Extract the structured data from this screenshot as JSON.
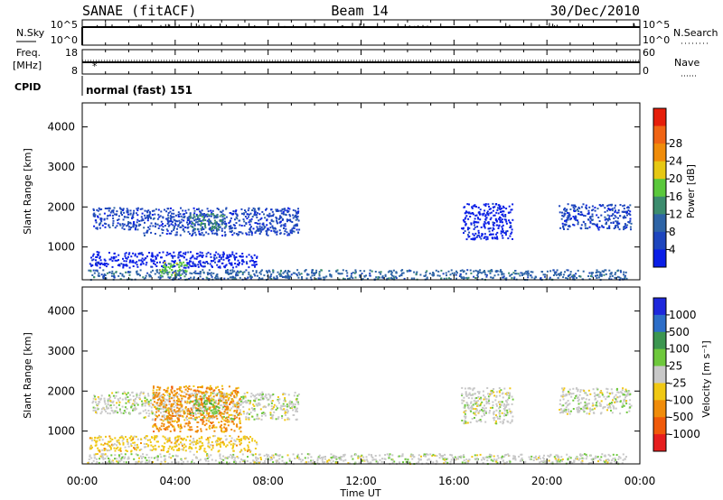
{
  "header": {
    "station": "SANAE (fitACF)",
    "beam": "Beam 14",
    "date": "30/Dec/2010"
  },
  "strip_panels": {
    "nsky_label": "N.Sky",
    "nsky_ticks": [
      "10^5",
      "10^0"
    ],
    "nsearch_label": "N.Search",
    "nsearch_ticks": [
      "10^5",
      "10^0"
    ],
    "freq_label_1": "Freq.",
    "freq_label_2": "[MHz]",
    "freq_ticks": [
      "18",
      "8"
    ],
    "nave_label": "Nave",
    "nave_ticks": [
      "60",
      "0"
    ],
    "cpid_label": "CPID",
    "cpid_value": "normal (fast) 151"
  },
  "x_axis": {
    "ticks": [
      "00:00",
      "04:00",
      "08:00",
      "12:00",
      "16:00",
      "20:00",
      "00:00"
    ],
    "label": "Time UT"
  },
  "colors": {
    "power": [
      "#0a1ee6",
      "#1e46be",
      "#2e64a6",
      "#3c8c6e",
      "#5ac83c",
      "#e6c814",
      "#f08c0a",
      "#f06414",
      "#e61e0a"
    ],
    "velocity": [
      "#1e28dc",
      "#2d6ec8",
      "#3c9650",
      "#6ec83c",
      "#c8c8c8",
      "#f0c814",
      "#f08c0a",
      "#f05a0a",
      "#e61e1e"
    ]
  },
  "chart_data": [
    {
      "type": "heatmap",
      "panel": "power",
      "ylabel": "Slant Range [km]",
      "yticks": [
        "1000",
        "2000",
        "3000",
        "4000"
      ],
      "ylim": [
        180,
        4600
      ],
      "xlim_hours": [
        0,
        24
      ],
      "colorbar_label": "Power [dB]",
      "colorbar_ticks": [
        "4",
        "8",
        "12",
        "16",
        "20",
        "24",
        "28"
      ],
      "regions": [
        {
          "t0": 0.4,
          "t1": 2.6,
          "r0": 1450,
          "r1": 2000,
          "color_index": 1
        },
        {
          "t0": 2.6,
          "t1": 9.3,
          "r0": 1300,
          "r1": 2000,
          "color_index": 1
        },
        {
          "t0": 4.6,
          "t1": 6.2,
          "r0": 1450,
          "r1": 1850,
          "color_index": 3
        },
        {
          "t0": 0.3,
          "t1": 7.5,
          "r0": 500,
          "r1": 900,
          "color_index": 0
        },
        {
          "t0": 0.2,
          "t1": 23.4,
          "r0": 200,
          "r1": 450,
          "color_index": 2
        },
        {
          "t0": 3.3,
          "t1": 4.5,
          "r0": 300,
          "r1": 650,
          "color_index": 4
        },
        {
          "t0": 16.3,
          "t1": 18.5,
          "r0": 1200,
          "r1": 2100,
          "color_index": 0
        },
        {
          "t0": 20.5,
          "t1": 23.6,
          "r0": 1450,
          "r1": 2100,
          "color_index": 1
        }
      ]
    },
    {
      "type": "heatmap",
      "panel": "velocity",
      "ylabel": "Slant Range [km]",
      "yticks": [
        "1000",
        "2000",
        "3000",
        "4000"
      ],
      "ylim": [
        180,
        4600
      ],
      "xlim_hours": [
        0,
        24
      ],
      "colorbar_label": "Velocity [m s⁻¹]",
      "colorbar_ticks": [
        "1000",
        "500",
        "100",
        "25",
        "-25",
        "-100",
        "-500",
        "-1000"
      ],
      "regions": [
        {
          "t0": 0.4,
          "t1": 2.6,
          "r0": 1450,
          "r1": 2000,
          "color_index": 4
        },
        {
          "t0": 2.6,
          "t1": 9.3,
          "r0": 1300,
          "r1": 2000,
          "color_index": 4
        },
        {
          "t0": 3.0,
          "t1": 6.8,
          "r0": 1000,
          "r1": 2150,
          "color_index": 6
        },
        {
          "t0": 4.6,
          "t1": 6.0,
          "r0": 1450,
          "r1": 1800,
          "color_index": 3
        },
        {
          "t0": 0.3,
          "t1": 7.5,
          "r0": 500,
          "r1": 900,
          "color_index": 5
        },
        {
          "t0": 0.2,
          "t1": 23.4,
          "r0": 200,
          "r1": 450,
          "color_index": 4
        },
        {
          "t0": 16.3,
          "t1": 18.5,
          "r0": 1200,
          "r1": 2100,
          "color_index": 4
        },
        {
          "t0": 20.5,
          "t1": 23.6,
          "r0": 1450,
          "r1": 2100,
          "color_index": 4
        }
      ]
    }
  ]
}
